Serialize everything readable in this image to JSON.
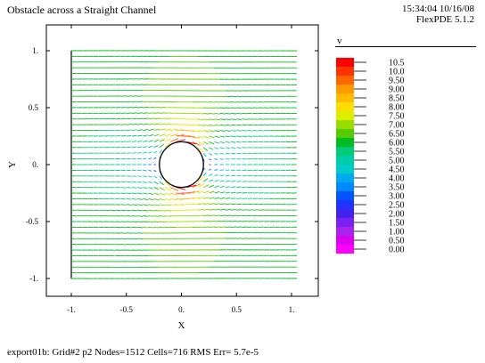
{
  "header": {
    "title": "Obstacle across a Straight Channel",
    "timestamp": "15:34:04 10/16/08",
    "software": "FlexPDE 5.1.2"
  },
  "footer": {
    "status": "export01b:  Grid#2  p2  Nodes=1512 Cells=716 RMS Err= 5.7e-5"
  },
  "chart_data": {
    "type": "vector-field",
    "title": "Obstacle across a Straight Channel",
    "xlabel": "X",
    "ylabel": "Y",
    "xlim": [
      -1.0,
      1.0
    ],
    "ylim": [
      -1.0,
      1.0
    ],
    "x_ticks": [
      -1.0,
      -0.5,
      0.0,
      0.5,
      1.0
    ],
    "x_tick_labels": [
      "-1.",
      "-0.5",
      "0.",
      "0.5",
      "1."
    ],
    "y_ticks": [
      -1.0,
      -0.5,
      0.0,
      0.5,
      1.0
    ],
    "y_tick_labels": [
      "-1.",
      "-0.5",
      "0.",
      "0.5",
      "1."
    ],
    "obstacle": {
      "shape": "circle",
      "center": [
        0.0,
        0.0
      ],
      "radius": 0.2
    },
    "vector_rows_y": [
      -1.0,
      -0.95,
      -0.9,
      -0.85,
      -0.8,
      -0.75,
      -0.7,
      -0.65,
      -0.6,
      -0.55,
      -0.5,
      -0.45,
      -0.4,
      -0.35,
      -0.3,
      -0.25,
      -0.2,
      -0.15,
      -0.1,
      -0.05,
      0.0,
      0.05,
      0.1,
      0.15,
      0.2,
      0.25,
      0.3,
      0.35,
      0.4,
      0.45,
      0.5,
      0.55,
      0.6,
      0.65,
      0.7,
      0.75,
      0.8,
      0.85,
      0.9,
      0.95,
      1.0
    ],
    "vector_cols_x": [
      -1.0,
      -0.95,
      -0.9,
      -0.85,
      -0.8,
      -0.75,
      -0.7,
      -0.65,
      -0.6,
      -0.55,
      -0.5,
      -0.45,
      -0.4,
      -0.35,
      -0.3,
      -0.25,
      -0.2,
      -0.15,
      -0.1,
      -0.05,
      0.0,
      0.05,
      0.1,
      0.15,
      0.2,
      0.25,
      0.3,
      0.35,
      0.4,
      0.45,
      0.5,
      0.55,
      0.6,
      0.65,
      0.7,
      0.75,
      0.8,
      0.85,
      0.9,
      0.95,
      1.0
    ],
    "legend": {
      "variable": "v",
      "levels": [
        "10.5",
        "10.0",
        "9.50",
        "9.00",
        "8.50",
        "8.00",
        "7.50",
        "7.00",
        "6.50",
        "6.00",
        "5.50",
        "5.00",
        "4.50",
        "4.00",
        "3.50",
        "3.00",
        "2.50",
        "2.00",
        "1.50",
        "1.00",
        "0.50",
        "0.00"
      ],
      "colors": [
        "#ff0000",
        "#ff3300",
        "#ff6600",
        "#ff9900",
        "#ffbb00",
        "#ffdd00",
        "#ddee00",
        "#99dd00",
        "#55cc00",
        "#00bb22",
        "#00cc77",
        "#00ccaa",
        "#00cccc",
        "#00aaee",
        "#0088ff",
        "#0055ff",
        "#2233ff",
        "#4422ee",
        "#7722ee",
        "#aa22ee",
        "#dd00ee",
        "#ff00ff"
      ]
    }
  }
}
